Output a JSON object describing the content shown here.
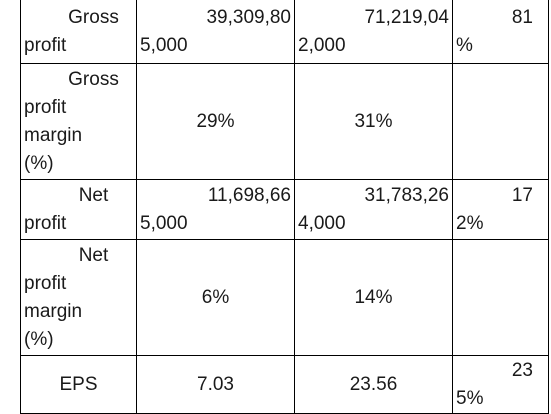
{
  "rows": [
    {
      "label_lines": [
        "Gross",
        "profit"
      ],
      "v1": [
        "39,309,80",
        "5,000"
      ],
      "v2": [
        "71,219,04",
        "2,000"
      ],
      "v3": [
        "81",
        "%"
      ]
    },
    {
      "label_lines": [
        "Gross",
        "profit",
        "margin",
        "(%)"
      ],
      "v1": [
        "29%"
      ],
      "v2": [
        "31%"
      ],
      "v3": [
        ""
      ]
    },
    {
      "label_lines": [
        "Net",
        "profit"
      ],
      "v1": [
        "11,698,66",
        "5,000"
      ],
      "v2": [
        "31,783,26",
        "4,000"
      ],
      "v3": [
        "17",
        "2%"
      ]
    },
    {
      "label_lines": [
        "Net",
        "profit",
        "margin",
        "(%)"
      ],
      "v1": [
        "6%"
      ],
      "v2": [
        "14%"
      ],
      "v3": [
        ""
      ]
    },
    {
      "label_lines": [
        "EPS"
      ],
      "v1": [
        "7.03"
      ],
      "v2": [
        "23.56"
      ],
      "v3": [
        "23",
        "5%"
      ]
    }
  ]
}
